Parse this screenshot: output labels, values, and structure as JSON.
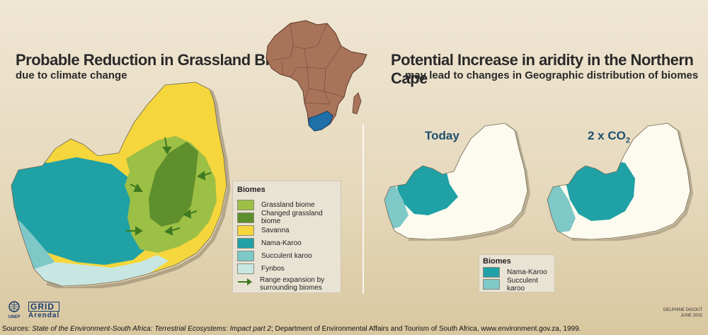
{
  "left_panel": {
    "title": "Probable Reduction in Grassland Biome",
    "subtitle": "due to climate change"
  },
  "right_panel": {
    "title": "Potential Increase in aridity in the Northern Cape",
    "subtitle": "may lead to changes in Geographic distribution of biomes",
    "map_today_label": "Today",
    "map_2xco2_prefix": "2 x CO",
    "map_2xco2_sub": "2"
  },
  "legend_left": {
    "title": "Biomes",
    "items": [
      {
        "label": "Grassland biome",
        "color": "#9cbf45"
      },
      {
        "label": "Changed grassland biome",
        "color": "#5e8f2c"
      },
      {
        "label": "Savanna",
        "color": "#f5d63c"
      },
      {
        "label": "Nama-Karoo",
        "color": "#1fa1a6"
      },
      {
        "label": "Succulent karoo",
        "color": "#7fc8c8"
      },
      {
        "label": "Fynbos",
        "color": "#c9e7e2"
      }
    ],
    "arrow_label_1": "Range expansion by",
    "arrow_label_2": "surrounding biomes"
  },
  "legend_right": {
    "title": "Biomes",
    "items": [
      {
        "label": "Nama-Karoo",
        "color": "#1fa1a6"
      },
      {
        "label": "Succulent karoo",
        "color": "#7fc8c8"
      }
    ]
  },
  "logos": {
    "unep": "UNEP",
    "grid": "GRID",
    "arendal": "Arendal"
  },
  "credit": {
    "author": "DELPHINE DIGOUT",
    "date": "JUNE 2002"
  },
  "sources": {
    "prefix": "Sources: ",
    "italic": "State of the Environment-South Africa: Terrestrial Ecosystems: Impact part 2",
    "rest": "; Department of Environmental Affairs and Tourism of South Africa, www.environment.gov.za, 1999."
  },
  "colors": {
    "africa": "#a9735a",
    "highlight": "#1f6fa8",
    "map_blank": "#fdfbef"
  }
}
